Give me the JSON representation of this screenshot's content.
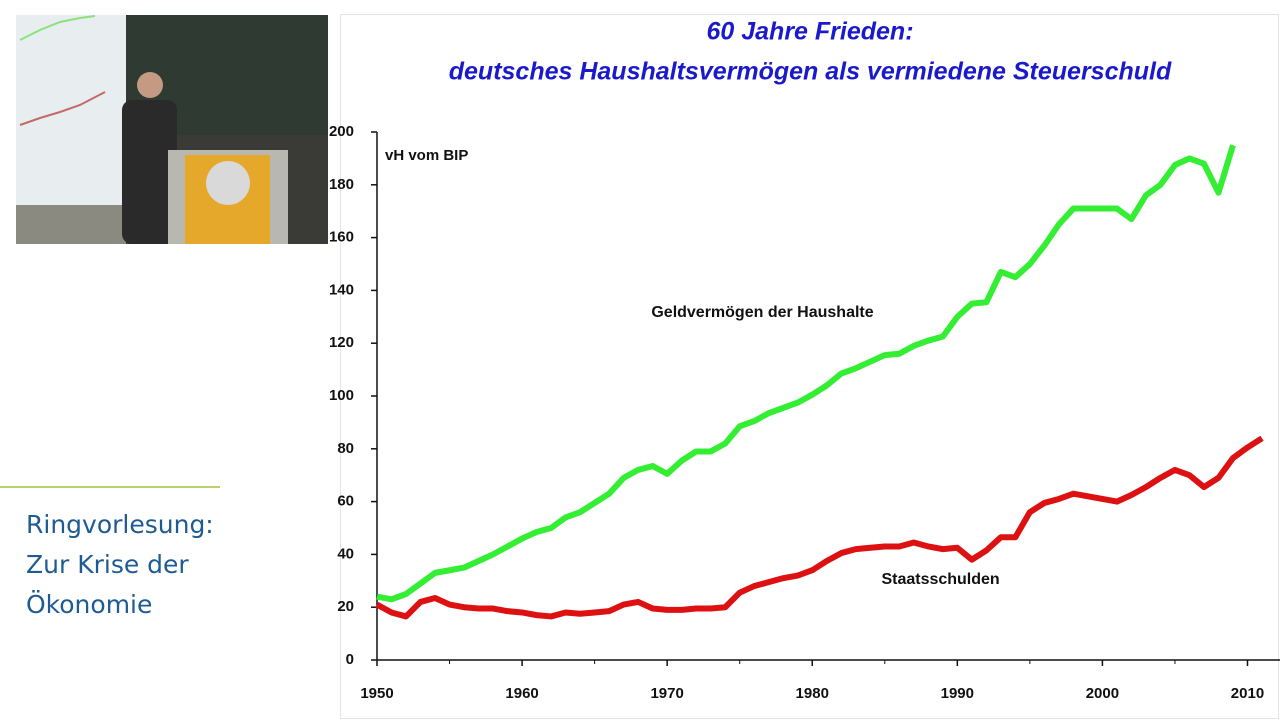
{
  "sidebar": {
    "lines": [
      "Ringvorlesung:",
      "Zur Krise der",
      "Ökonomie"
    ]
  },
  "chart_data": {
    "type": "line",
    "title": "60 Jahre Frieden:",
    "subtitle": "deutsches Haushaltsvermögen als vermiedene Steuerschuld",
    "ylabel": "vH vom BIP",
    "xlim": [
      1950,
      2011
    ],
    "xticks": [
      1950,
      1960,
      1970,
      1980,
      1990,
      2000,
      2010
    ],
    "ylim": [
      0,
      200
    ],
    "yticks": [
      0,
      20,
      40,
      60,
      80,
      100,
      120,
      140,
      160,
      180,
      200
    ],
    "grid": false,
    "series": [
      {
        "name": "Geldvermögen der Haushalte",
        "color": "#33ee33",
        "x": [
          1950,
          1951,
          1952,
          1953,
          1954,
          1955,
          1956,
          1957,
          1958,
          1959,
          1960,
          1961,
          1962,
          1963,
          1964,
          1965,
          1966,
          1967,
          1968,
          1969,
          1970,
          1971,
          1972,
          1973,
          1974,
          1975,
          1976,
          1977,
          1978,
          1979,
          1980,
          1981,
          1982,
          1983,
          1984,
          1985,
          1986,
          1987,
          1988,
          1989,
          1990,
          1991,
          1992,
          1993,
          1994,
          1995,
          1996,
          1997,
          1998,
          1999,
          2000,
          2001,
          2002,
          2003,
          2004,
          2005,
          2006,
          2007,
          2008,
          2009
        ],
        "values": [
          24,
          23,
          25,
          29,
          33,
          34,
          35,
          37.5,
          40,
          43,
          46,
          48.5,
          50,
          54,
          56,
          59.5,
          63,
          69,
          72,
          73.5,
          70.5,
          75.5,
          79,
          79,
          82,
          88.5,
          90.5,
          93.5,
          95.5,
          97.5,
          100.5,
          104,
          108.5,
          110.5,
          113,
          115.5,
          116,
          119,
          121,
          122.5,
          130,
          135,
          135.5,
          147,
          145,
          150,
          157,
          165,
          171,
          171,
          171,
          171,
          167,
          176,
          180,
          187.5,
          190,
          188,
          177,
          195
        ]
      },
      {
        "name": "Staatsschulden",
        "color": "#dd1111",
        "x": [
          1950,
          1951,
          1952,
          1953,
          1954,
          1955,
          1956,
          1957,
          1958,
          1959,
          1960,
          1961,
          1962,
          1963,
          1964,
          1965,
          1966,
          1967,
          1968,
          1969,
          1970,
          1971,
          1972,
          1973,
          1974,
          1975,
          1976,
          1977,
          1978,
          1979,
          1980,
          1981,
          1982,
          1983,
          1984,
          1985,
          1986,
          1987,
          1988,
          1989,
          1990,
          1991,
          1992,
          1993,
          1994,
          1995,
          1996,
          1997,
          1998,
          1999,
          2000,
          2001,
          2002,
          2003,
          2004,
          2005,
          2006,
          2007,
          2008,
          2009,
          2010,
          2011
        ],
        "values": [
          21,
          18,
          16.5,
          22,
          23.5,
          21,
          20,
          19.5,
          19.5,
          18.5,
          18,
          17,
          16.5,
          18,
          17.5,
          18,
          18.5,
          21,
          22,
          19.5,
          19,
          19,
          19.5,
          19.5,
          20,
          25.5,
          28,
          29.5,
          31,
          32,
          34,
          37.5,
          40.5,
          42,
          42.5,
          43,
          43,
          44.5,
          43,
          42,
          42.5,
          38,
          41.5,
          46.5,
          46.5,
          56,
          59.5,
          61,
          63,
          62,
          61,
          60,
          62.5,
          65.5,
          69,
          72,
          70,
          65.5,
          69,
          76.5,
          80.5,
          84
        ]
      }
    ]
  }
}
